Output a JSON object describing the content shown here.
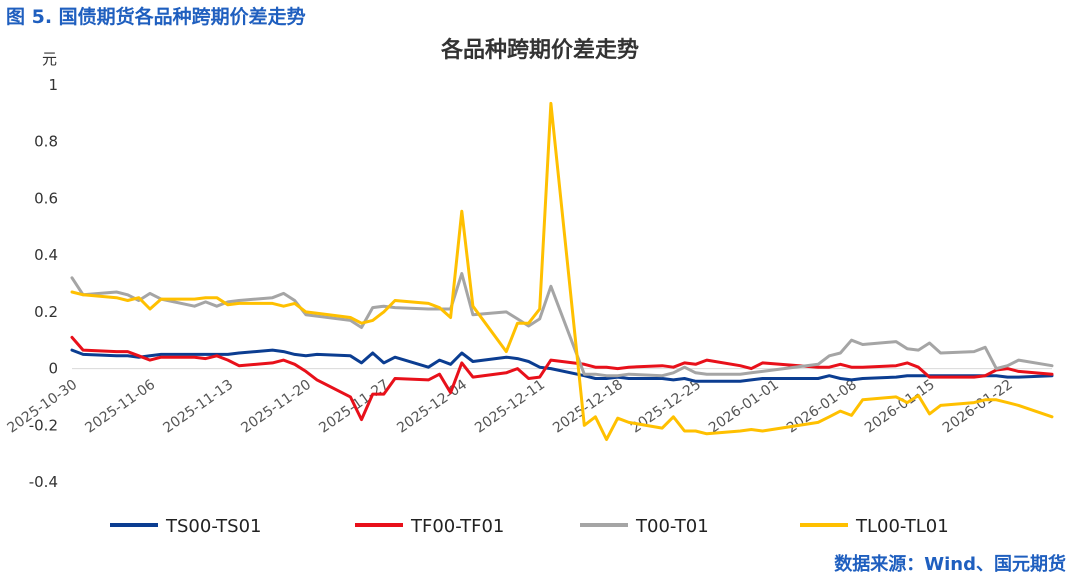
{
  "caption": "图 5. 国债期货各品种跨期价差走势",
  "source": "数据来源：Wind、国元期货",
  "colors": {
    "TS": "#0b3d91",
    "TF": "#e8101a",
    "T": "#a5a5a5",
    "TL": "#ffc000"
  },
  "chart_data": {
    "type": "line",
    "title": "各品种跨期价差走势",
    "ylabel": "元",
    "ylim": [
      -0.4,
      1.0
    ],
    "yticks": [
      -0.4,
      -0.2,
      0,
      0.2,
      0.4,
      0.6,
      0.8,
      1
    ],
    "ytick_labels": [
      "-0.4",
      "-0.2",
      "0",
      "0.2",
      "0.4",
      "0.6",
      "0.8",
      "1"
    ],
    "xlim": [
      "2025-10-30",
      "2026-01-26"
    ],
    "xticks": [
      "2025-10-30",
      "2025-11-06",
      "2025-11-13",
      "2025-11-20",
      "2025-11-27",
      "2025-12-04",
      "2025-12-11",
      "2025-12-18",
      "2025-12-25",
      "2026-01-01",
      "2026-01-08",
      "2026-01-15",
      "2026-01-22"
    ],
    "legend_position": "bottom",
    "grid": false,
    "series": [
      {
        "name": "TS00-TS01",
        "key": "TS",
        "points": [
          [
            "2025-10-30",
            0.065
          ],
          [
            "2025-10-31",
            0.05
          ],
          [
            "2025-11-03",
            0.045
          ],
          [
            "2025-11-04",
            0.045
          ],
          [
            "2025-11-05",
            0.04
          ],
          [
            "2025-11-06",
            0.045
          ],
          [
            "2025-11-07",
            0.05
          ],
          [
            "2025-11-10",
            0.05
          ],
          [
            "2025-11-11",
            0.05
          ],
          [
            "2025-11-12",
            0.05
          ],
          [
            "2025-11-13",
            0.05
          ],
          [
            "2025-11-14",
            0.055
          ],
          [
            "2025-11-17",
            0.065
          ],
          [
            "2025-11-18",
            0.06
          ],
          [
            "2025-11-19",
            0.05
          ],
          [
            "2025-11-20",
            0.045
          ],
          [
            "2025-11-21",
            0.05
          ],
          [
            "2025-11-24",
            0.045
          ],
          [
            "2025-11-25",
            0.02
          ],
          [
            "2025-11-26",
            0.055
          ],
          [
            "2025-11-27",
            0.02
          ],
          [
            "2025-11-28",
            0.04
          ],
          [
            "2025-12-01",
            0.005
          ],
          [
            "2025-12-02",
            0.03
          ],
          [
            "2025-12-03",
            0.015
          ],
          [
            "2025-12-04",
            0.055
          ],
          [
            "2025-12-05",
            0.025
          ],
          [
            "2025-12-08",
            0.04
          ],
          [
            "2025-12-09",
            0.035
          ],
          [
            "2025-12-10",
            0.025
          ],
          [
            "2025-12-11",
            0.005
          ],
          [
            "2025-12-12",
            0.0
          ],
          [
            "2025-12-15",
            -0.025
          ],
          [
            "2025-12-16",
            -0.035
          ],
          [
            "2025-12-17",
            -0.035
          ],
          [
            "2025-12-18",
            -0.03
          ],
          [
            "2025-12-19",
            -0.035
          ],
          [
            "2025-12-22",
            -0.035
          ],
          [
            "2025-12-23",
            -0.04
          ],
          [
            "2025-12-24",
            -0.035
          ],
          [
            "2025-12-25",
            -0.045
          ],
          [
            "2025-12-26",
            -0.045
          ],
          [
            "2025-12-29",
            -0.045
          ],
          [
            "2025-12-30",
            -0.04
          ],
          [
            "2025-12-31",
            -0.035
          ],
          [
            "2026-01-05",
            -0.035
          ],
          [
            "2026-01-06",
            -0.025
          ],
          [
            "2026-01-07",
            -0.035
          ],
          [
            "2026-01-08",
            -0.04
          ],
          [
            "2026-01-09",
            -0.035
          ],
          [
            "2026-01-12",
            -0.03
          ],
          [
            "2026-01-13",
            -0.025
          ],
          [
            "2026-01-14",
            -0.025
          ],
          [
            "2026-01-15",
            -0.025
          ],
          [
            "2026-01-16",
            -0.025
          ],
          [
            "2026-01-19",
            -0.025
          ],
          [
            "2026-01-20",
            -0.025
          ],
          [
            "2026-01-21",
            -0.025
          ],
          [
            "2026-01-22",
            -0.03
          ],
          [
            "2026-01-23",
            -0.03
          ],
          [
            "2026-01-26",
            -0.025
          ]
        ]
      },
      {
        "name": "TF00-TF01",
        "key": "TF",
        "points": [
          [
            "2025-10-30",
            0.11
          ],
          [
            "2025-10-31",
            0.065
          ],
          [
            "2025-11-03",
            0.06
          ],
          [
            "2025-11-04",
            0.06
          ],
          [
            "2025-11-05",
            0.045
          ],
          [
            "2025-11-06",
            0.03
          ],
          [
            "2025-11-07",
            0.04
          ],
          [
            "2025-11-10",
            0.04
          ],
          [
            "2025-11-11",
            0.035
          ],
          [
            "2025-11-12",
            0.045
          ],
          [
            "2025-11-13",
            0.03
          ],
          [
            "2025-11-14",
            0.01
          ],
          [
            "2025-11-17",
            0.02
          ],
          [
            "2025-11-18",
            0.03
          ],
          [
            "2025-11-19",
            0.015
          ],
          [
            "2025-11-20",
            -0.01
          ],
          [
            "2025-11-21",
            -0.04
          ],
          [
            "2025-11-24",
            -0.1
          ],
          [
            "2025-11-25",
            -0.18
          ],
          [
            "2025-11-26",
            -0.09
          ],
          [
            "2025-11-27",
            -0.09
          ],
          [
            "2025-11-28",
            -0.035
          ],
          [
            "2025-12-01",
            -0.04
          ],
          [
            "2025-12-02",
            -0.02
          ],
          [
            "2025-12-03",
            -0.085
          ],
          [
            "2025-12-04",
            0.02
          ],
          [
            "2025-12-05",
            -0.03
          ],
          [
            "2025-12-08",
            -0.015
          ],
          [
            "2025-12-09",
            0.0
          ],
          [
            "2025-12-10",
            -0.035
          ],
          [
            "2025-12-11",
            -0.03
          ],
          [
            "2025-12-12",
            0.03
          ],
          [
            "2025-12-15",
            0.015
          ],
          [
            "2025-12-16",
            0.005
          ],
          [
            "2025-12-17",
            0.005
          ],
          [
            "2025-12-18",
            0.0
          ],
          [
            "2025-12-19",
            0.005
          ],
          [
            "2025-12-22",
            0.01
          ],
          [
            "2025-12-23",
            0.005
          ],
          [
            "2025-12-24",
            0.02
          ],
          [
            "2025-12-25",
            0.015
          ],
          [
            "2025-12-26",
            0.03
          ],
          [
            "2025-12-29",
            0.01
          ],
          [
            "2025-12-30",
            0.0
          ],
          [
            "2025-12-31",
            0.02
          ],
          [
            "2026-01-05",
            0.005
          ],
          [
            "2026-01-06",
            0.005
          ],
          [
            "2026-01-07",
            0.015
          ],
          [
            "2026-01-08",
            0.005
          ],
          [
            "2026-01-09",
            0.005
          ],
          [
            "2026-01-12",
            0.01
          ],
          [
            "2026-01-13",
            0.02
          ],
          [
            "2026-01-14",
            0.005
          ],
          [
            "2026-01-15",
            -0.03
          ],
          [
            "2026-01-16",
            -0.03
          ],
          [
            "2026-01-19",
            -0.03
          ],
          [
            "2026-01-20",
            -0.025
          ],
          [
            "2026-01-21",
            -0.005
          ],
          [
            "2026-01-22",
            0.0
          ],
          [
            "2026-01-23",
            -0.01
          ],
          [
            "2026-01-26",
            -0.02
          ]
        ]
      },
      {
        "name": "T00-T01",
        "key": "T",
        "points": [
          [
            "2025-10-30",
            0.32
          ],
          [
            "2025-10-31",
            0.26
          ],
          [
            "2025-11-03",
            0.27
          ],
          [
            "2025-11-04",
            0.26
          ],
          [
            "2025-11-05",
            0.24
          ],
          [
            "2025-11-06",
            0.265
          ],
          [
            "2025-11-07",
            0.245
          ],
          [
            "2025-11-10",
            0.22
          ],
          [
            "2025-11-11",
            0.235
          ],
          [
            "2025-11-12",
            0.22
          ],
          [
            "2025-11-13",
            0.235
          ],
          [
            "2025-11-14",
            0.24
          ],
          [
            "2025-11-17",
            0.25
          ],
          [
            "2025-11-18",
            0.265
          ],
          [
            "2025-11-19",
            0.24
          ],
          [
            "2025-11-20",
            0.19
          ],
          [
            "2025-11-21",
            0.185
          ],
          [
            "2025-11-24",
            0.17
          ],
          [
            "2025-11-25",
            0.145
          ],
          [
            "2025-11-26",
            0.215
          ],
          [
            "2025-11-27",
            0.22
          ],
          [
            "2025-11-28",
            0.215
          ],
          [
            "2025-12-01",
            0.21
          ],
          [
            "2025-12-02",
            0.21
          ],
          [
            "2025-12-03",
            0.21
          ],
          [
            "2025-12-04",
            0.335
          ],
          [
            "2025-12-05",
            0.19
          ],
          [
            "2025-12-08",
            0.2
          ],
          [
            "2025-12-09",
            0.175
          ],
          [
            "2025-12-10",
            0.15
          ],
          [
            "2025-12-11",
            0.175
          ],
          [
            "2025-12-12",
            0.29
          ],
          [
            "2025-12-15",
            -0.02
          ],
          [
            "2025-12-16",
            -0.02
          ],
          [
            "2025-12-17",
            -0.025
          ],
          [
            "2025-12-18",
            -0.025
          ],
          [
            "2025-12-19",
            -0.02
          ],
          [
            "2025-12-22",
            -0.025
          ],
          [
            "2025-12-23",
            -0.015
          ],
          [
            "2025-12-24",
            0.005
          ],
          [
            "2025-12-25",
            -0.015
          ],
          [
            "2025-12-26",
            -0.02
          ],
          [
            "2025-12-29",
            -0.02
          ],
          [
            "2025-12-30",
            -0.015
          ],
          [
            "2025-12-31",
            -0.01
          ],
          [
            "2026-01-05",
            0.015
          ],
          [
            "2026-01-06",
            0.045
          ],
          [
            "2026-01-07",
            0.055
          ],
          [
            "2026-01-08",
            0.1
          ],
          [
            "2026-01-09",
            0.085
          ],
          [
            "2026-01-12",
            0.095
          ],
          [
            "2026-01-13",
            0.07
          ],
          [
            "2026-01-14",
            0.065
          ],
          [
            "2026-01-15",
            0.09
          ],
          [
            "2026-01-16",
            0.055
          ],
          [
            "2026-01-19",
            0.06
          ],
          [
            "2026-01-20",
            0.075
          ],
          [
            "2026-01-21",
            0.0
          ],
          [
            "2026-01-22",
            0.01
          ],
          [
            "2026-01-23",
            0.03
          ],
          [
            "2026-01-26",
            0.01
          ]
        ]
      },
      {
        "name": "TL00-TL01",
        "key": "TL",
        "points": [
          [
            "2025-10-30",
            0.27
          ],
          [
            "2025-10-31",
            0.26
          ],
          [
            "2025-11-03",
            0.25
          ],
          [
            "2025-11-04",
            0.24
          ],
          [
            "2025-11-05",
            0.25
          ],
          [
            "2025-11-06",
            0.21
          ],
          [
            "2025-11-07",
            0.245
          ],
          [
            "2025-11-10",
            0.245
          ],
          [
            "2025-11-11",
            0.25
          ],
          [
            "2025-11-12",
            0.25
          ],
          [
            "2025-11-13",
            0.225
          ],
          [
            "2025-11-14",
            0.23
          ],
          [
            "2025-11-17",
            0.23
          ],
          [
            "2025-11-18",
            0.22
          ],
          [
            "2025-11-19",
            0.23
          ],
          [
            "2025-11-20",
            0.2
          ],
          [
            "2025-11-21",
            0.195
          ],
          [
            "2025-11-24",
            0.18
          ],
          [
            "2025-11-25",
            0.16
          ],
          [
            "2025-11-26",
            0.17
          ],
          [
            "2025-11-27",
            0.2
          ],
          [
            "2025-11-28",
            0.24
          ],
          [
            "2025-12-01",
            0.23
          ],
          [
            "2025-12-02",
            0.215
          ],
          [
            "2025-12-03",
            0.18
          ],
          [
            "2025-12-04",
            0.555
          ],
          [
            "2025-12-05",
            0.22
          ],
          [
            "2025-12-08",
            0.06
          ],
          [
            "2025-12-09",
            0.16
          ],
          [
            "2025-12-10",
            0.16
          ],
          [
            "2025-12-11",
            0.21
          ],
          [
            "2025-12-12",
            0.935
          ],
          [
            "2025-12-15",
            -0.2
          ],
          [
            "2025-12-16",
            -0.17
          ],
          [
            "2025-12-17",
            -0.25
          ],
          [
            "2025-12-18",
            -0.175
          ],
          [
            "2025-12-19",
            -0.19
          ],
          [
            "2025-12-22",
            -0.21
          ],
          [
            "2025-12-23",
            -0.17
          ],
          [
            "2025-12-24",
            -0.22
          ],
          [
            "2025-12-25",
            -0.22
          ],
          [
            "2025-12-26",
            -0.23
          ],
          [
            "2025-12-29",
            -0.22
          ],
          [
            "2025-12-30",
            -0.215
          ],
          [
            "2025-12-31",
            -0.22
          ],
          [
            "2026-01-05",
            -0.19
          ],
          [
            "2026-01-06",
            -0.17
          ],
          [
            "2026-01-07",
            -0.15
          ],
          [
            "2026-01-08",
            -0.165
          ],
          [
            "2026-01-09",
            -0.11
          ],
          [
            "2026-01-12",
            -0.1
          ],
          [
            "2026-01-13",
            -0.12
          ],
          [
            "2026-01-14",
            -0.095
          ],
          [
            "2026-01-15",
            -0.16
          ],
          [
            "2026-01-16",
            -0.13
          ],
          [
            "2026-01-19",
            -0.12
          ],
          [
            "2026-01-20",
            -0.11
          ],
          [
            "2026-01-21",
            -0.11
          ],
          [
            "2026-01-22",
            -0.12
          ],
          [
            "2026-01-23",
            -0.13
          ],
          [
            "2026-01-26",
            -0.17
          ]
        ]
      }
    ]
  }
}
